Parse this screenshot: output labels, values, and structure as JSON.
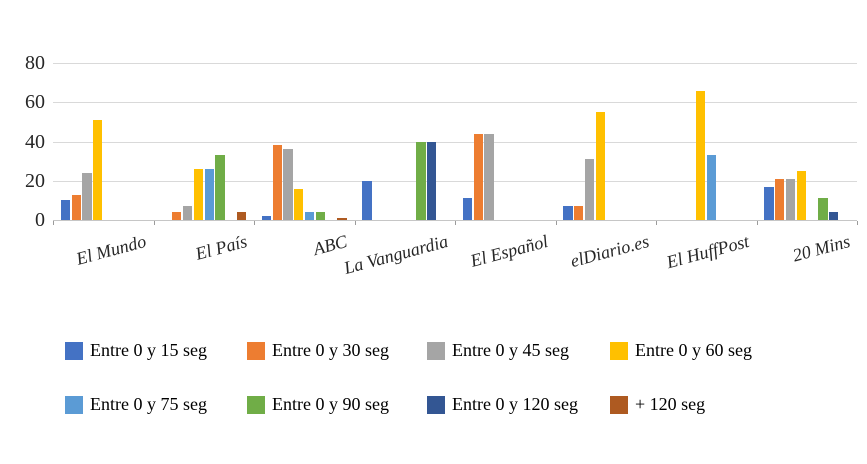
{
  "chart_data": {
    "type": "bar",
    "title": "",
    "xlabel": "",
    "ylabel": "",
    "ylim": [
      0,
      80
    ],
    "yticks": [
      0,
      20,
      40,
      60,
      80
    ],
    "grid": true,
    "legend_position": "bottom",
    "categories": [
      "El Mundo",
      "El País",
      "ABC",
      "La Vanguardia",
      "El Español",
      "elDiario.es",
      "El HuffPost",
      "20 Mins"
    ],
    "series": [
      {
        "name": "Entre 0 y 15 seg",
        "color": "#4472C4",
        "values": [
          10,
          0,
          2,
          20,
          11,
          7,
          0,
          17
        ]
      },
      {
        "name": "Entre 0 y 30 seg",
        "color": "#ED7D31",
        "values": [
          13,
          4,
          38,
          0,
          44,
          7,
          0,
          21
        ]
      },
      {
        "name": "Entre 0 y 45 seg",
        "color": "#A5A5A5",
        "values": [
          24,
          7,
          36,
          0,
          44,
          31,
          0,
          21
        ]
      },
      {
        "name": "Entre 0 y 60 seg",
        "color": "#FFC000",
        "values": [
          51,
          26,
          16,
          0,
          0,
          55,
          66,
          25
        ]
      },
      {
        "name": "Entre 0 y 75 seg",
        "color": "#5B9BD5",
        "values": [
          0,
          26,
          4,
          0,
          0,
          0,
          33,
          0
        ]
      },
      {
        "name": "Entre 0 y 90 seg",
        "color": "#70AD47",
        "values": [
          0,
          33,
          4,
          40,
          0,
          0,
          0,
          11
        ]
      },
      {
        "name": "Entre 0 y 120 seg",
        "color": "#335693",
        "values": [
          0,
          0,
          0,
          40,
          0,
          0,
          0,
          4
        ]
      },
      {
        "name": "+ 120 seg",
        "color": "#AE5A21",
        "values": [
          0,
          4,
          1,
          0,
          0,
          0,
          0,
          0
        ]
      }
    ]
  }
}
